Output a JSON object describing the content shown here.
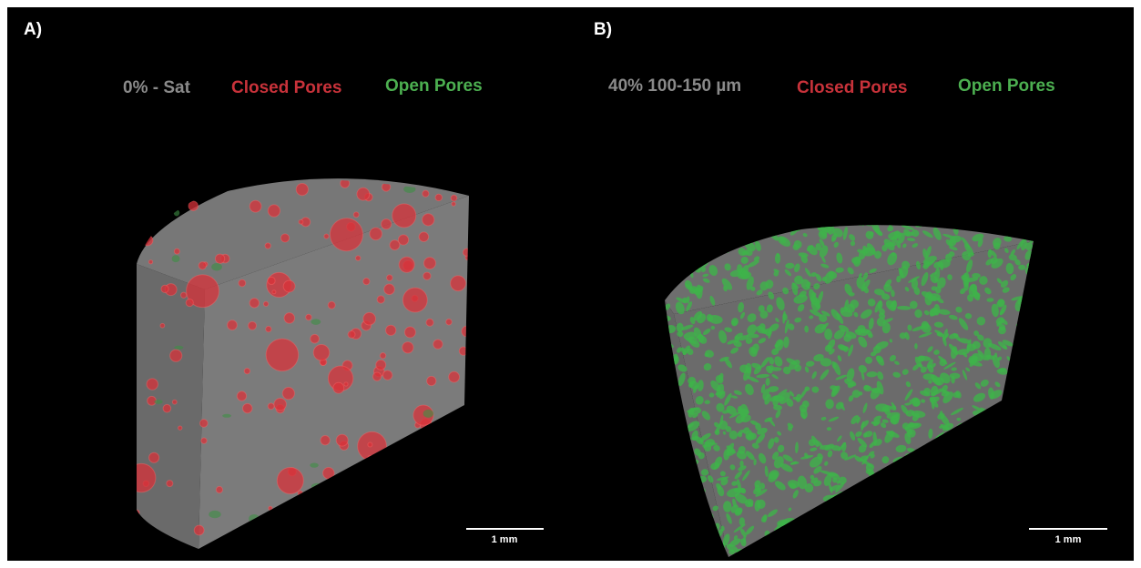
{
  "panels": [
    {
      "label": "A)",
      "legend": [
        "0% - Sat",
        "Closed Pores",
        "Open Pores"
      ],
      "scale_bar": "1 mm"
    },
    {
      "label": "B)",
      "legend": [
        "40% 100-150 µm",
        "Closed Pores",
        "Open Pores"
      ],
      "scale_bar": "1 mm"
    }
  ]
}
